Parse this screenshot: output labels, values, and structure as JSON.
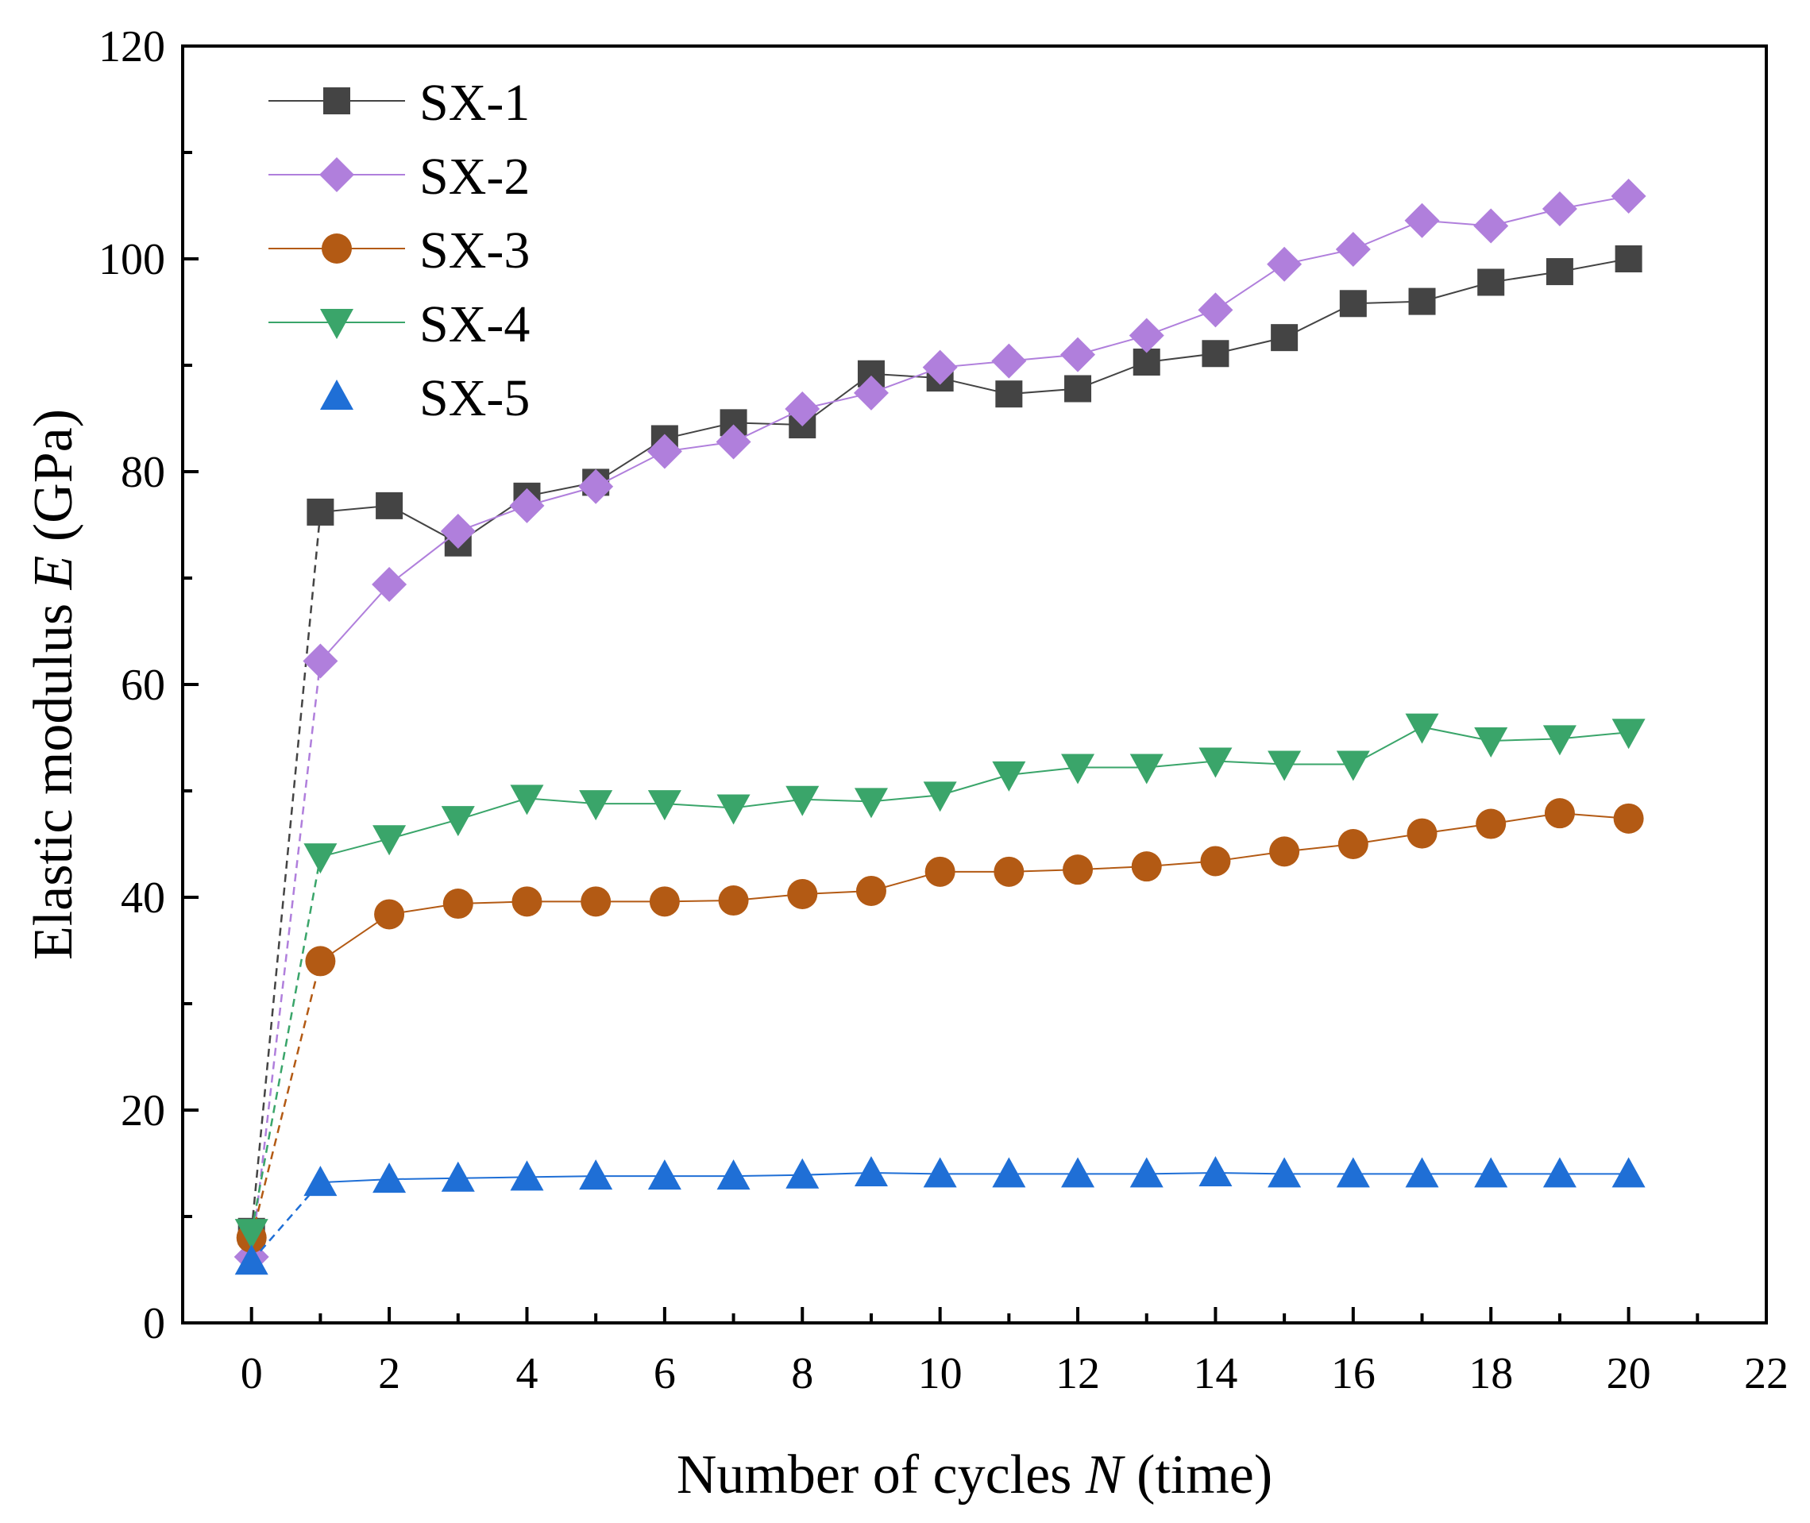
{
  "chart_data": {
    "type": "line",
    "title": "",
    "xlabel": "Number of cycles N (time)",
    "xlabel_parts": [
      "Number of cycles ",
      "N",
      " (time)"
    ],
    "ylabel": "Elastic modulus E (GPa)",
    "ylabel_parts": [
      "Elastic modulus ",
      "E",
      " (GPa)"
    ],
    "xlim": [
      -1,
      22
    ],
    "ylim": [
      0,
      120
    ],
    "xticks": [
      0,
      2,
      4,
      6,
      8,
      10,
      12,
      14,
      16,
      18,
      20,
      22
    ],
    "yticks": [
      0,
      20,
      40,
      60,
      80,
      100,
      120
    ],
    "grid": false,
    "legend_position": "top-left",
    "x": [
      0,
      1,
      2,
      3,
      4,
      5,
      6,
      7,
      8,
      9,
      10,
      11,
      12,
      13,
      14,
      15,
      16,
      17,
      18,
      19,
      20
    ],
    "series": [
      {
        "name": "SX-1",
        "marker": "square",
        "color": "#444444",
        "values": [
          8.6,
          76.2,
          76.8,
          73.3,
          77.7,
          79.0,
          83.1,
          84.6,
          84.4,
          89.2,
          88.8,
          87.3,
          87.8,
          90.3,
          91.1,
          92.6,
          95.8,
          96.0,
          97.8,
          98.8,
          100.0
        ]
      },
      {
        "name": "SX-2",
        "marker": "diamond",
        "color": "#b07fdc",
        "values": [
          6.2,
          62.2,
          69.4,
          74.4,
          76.8,
          78.6,
          81.9,
          82.8,
          85.9,
          87.4,
          89.8,
          90.4,
          91.0,
          92.8,
          95.2,
          99.5,
          100.9,
          103.6,
          103.1,
          104.7,
          105.9
        ]
      },
      {
        "name": "SX-3",
        "marker": "circle",
        "color": "#b35a14",
        "values": [
          8.0,
          34.0,
          38.4,
          39.4,
          39.6,
          39.6,
          39.6,
          39.7,
          40.3,
          40.6,
          42.4,
          42.4,
          42.6,
          42.9,
          43.4,
          44.3,
          45.0,
          46.0,
          46.9,
          47.9,
          47.4
        ]
      },
      {
        "name": "SX-4",
        "marker": "triangle-down",
        "color": "#3aa56a",
        "values": [
          8.5,
          43.8,
          45.5,
          47.3,
          49.3,
          48.8,
          48.8,
          48.4,
          49.2,
          49.0,
          49.6,
          51.5,
          52.2,
          52.2,
          52.8,
          52.5,
          52.5,
          56.0,
          54.7,
          54.9,
          55.5
        ]
      },
      {
        "name": "SX-5",
        "marker": "triangle-up",
        "color": "#1f6fd6",
        "values": [
          5.8,
          13.2,
          13.5,
          13.6,
          13.7,
          13.8,
          13.8,
          13.8,
          13.9,
          14.1,
          14.0,
          14.0,
          14.0,
          14.0,
          14.1,
          14.0,
          14.0,
          14.0,
          14.0,
          14.0,
          14.0
        ]
      }
    ]
  }
}
